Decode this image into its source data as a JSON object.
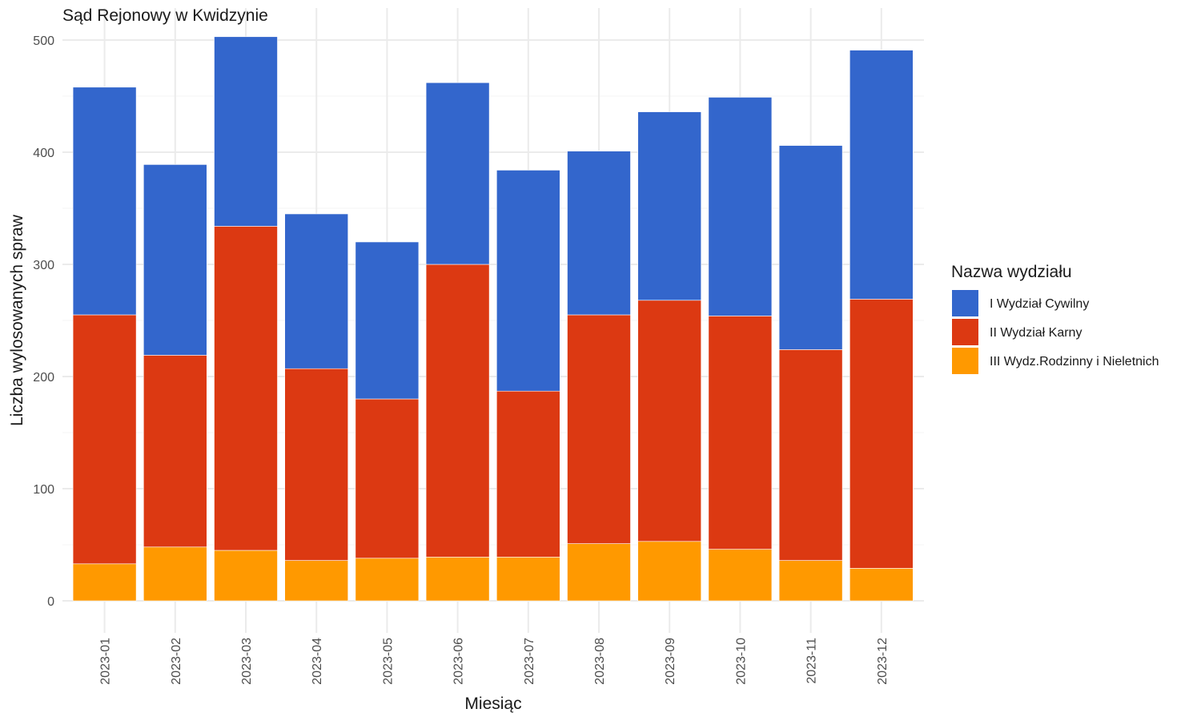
{
  "chart_data": {
    "type": "bar",
    "stacked": true,
    "title": "Sąd Rejonowy w Kwidzynie",
    "xlabel": "Miesiąc",
    "ylabel": "Liczba wylosowanych spraw",
    "ylim": [
      0,
      505
    ],
    "yticks": [
      0,
      100,
      200,
      300,
      400,
      500
    ],
    "grid": true,
    "legend_title": "Nazwa wydziału",
    "legend_position": "right",
    "categories": [
      "2023-01",
      "2023-02",
      "2023-03",
      "2023-04",
      "2023-05",
      "2023-06",
      "2023-07",
      "2023-08",
      "2023-09",
      "2023-10",
      "2023-11",
      "2023-12"
    ],
    "series": [
      {
        "name": "III Wydz.Rodzinny i Nieletnich",
        "color": "#FF9900",
        "values": [
          33,
          48,
          45,
          36,
          38,
          39,
          39,
          51,
          53,
          46,
          36,
          29
        ]
      },
      {
        "name": "II Wydział Karny",
        "color": "#DC3912",
        "values": [
          222,
          171,
          289,
          171,
          142,
          261,
          148,
          204,
          215,
          208,
          188,
          240
        ]
      },
      {
        "name": "I Wydział Cywilny",
        "color": "#3366CC",
        "values": [
          203,
          170,
          169,
          138,
          140,
          162,
          197,
          146,
          168,
          195,
          182,
          222
        ]
      }
    ],
    "legend_order": [
      "I Wydział Cywilny",
      "II Wydział Karny",
      "III Wydz.Rodzinny i Nieletnich"
    ]
  }
}
